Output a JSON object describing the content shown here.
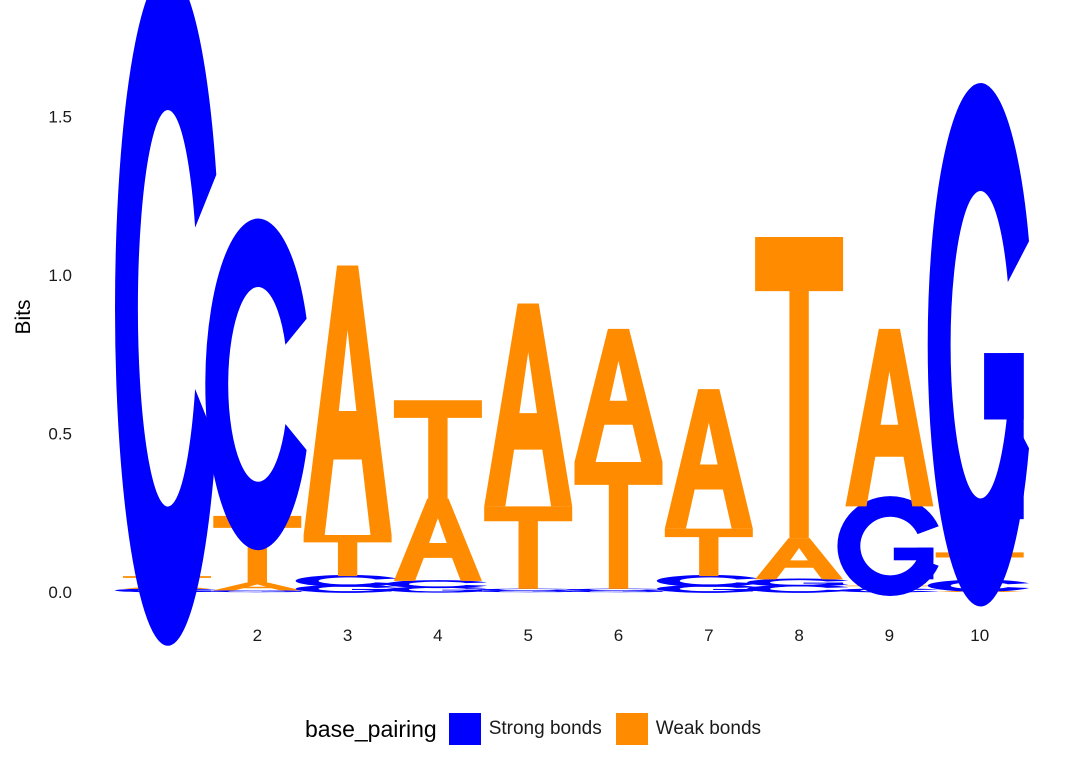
{
  "chart_data": {
    "type": "sequence-logo",
    "ylabel": "Bits",
    "ylim": [
      0,
      1.75
    ],
    "yticks": [
      0.0,
      0.5,
      1.0,
      1.5
    ],
    "ytick_labels": [
      "0.0",
      "0.5",
      "1.0",
      "1.5"
    ],
    "positions": [
      "1",
      "2",
      "3",
      "4",
      "5",
      "6",
      "7",
      "8",
      "9",
      "10"
    ],
    "legend": {
      "title": "base_pairing",
      "entries": [
        {
          "label": "Strong bonds",
          "color": "#0000ff"
        },
        {
          "label": "Weak bonds",
          "color": "#ff8c00"
        }
      ]
    },
    "color_scheme": {
      "C": "#0000ff",
      "G": "#0000ff",
      "A": "#ff8c00",
      "T": "#ff8c00"
    },
    "letters": [
      [
        {
          "letter": "G",
          "bits": 0.01
        },
        {
          "letter": "A",
          "bits": 0.01
        },
        {
          "letter": "T",
          "bits": 0.03
        },
        {
          "letter": "C",
          "bits": 1.69
        }
      ],
      [
        {
          "letter": "G",
          "bits": 0.005
        },
        {
          "letter": "A",
          "bits": 0.025
        },
        {
          "letter": "T",
          "bits": 0.21
        },
        {
          "letter": "C",
          "bits": 0.83
        }
      ],
      [
        {
          "letter": "G",
          "bits": 0.02
        },
        {
          "letter": "C",
          "bits": 0.03
        },
        {
          "letter": "T",
          "bits": 0.13
        },
        {
          "letter": "A",
          "bits": 0.85
        }
      ],
      [
        {
          "letter": "G",
          "bits": 0.015
        },
        {
          "letter": "C",
          "bits": 0.02
        },
        {
          "letter": "A",
          "bits": 0.26
        },
        {
          "letter": "T",
          "bits": 0.31
        }
      ],
      [
        {
          "letter": "G",
          "bits": 0.005
        },
        {
          "letter": "C",
          "bits": 0.005
        },
        {
          "letter": "T",
          "bits": 0.26
        },
        {
          "letter": "A",
          "bits": 0.64
        }
      ],
      [
        {
          "letter": "G",
          "bits": 0.005
        },
        {
          "letter": "C",
          "bits": 0.005
        },
        {
          "letter": "T",
          "bits": 0.4
        },
        {
          "letter": "A",
          "bits": 0.42
        }
      ],
      [
        {
          "letter": "G",
          "bits": 0.02
        },
        {
          "letter": "C",
          "bits": 0.03
        },
        {
          "letter": "T",
          "bits": 0.15
        },
        {
          "letter": "A",
          "bits": 0.44
        }
      ],
      [
        {
          "letter": "C",
          "bits": 0.02
        },
        {
          "letter": "G",
          "bits": 0.02
        },
        {
          "letter": "A",
          "bits": 0.13
        },
        {
          "letter": "T",
          "bits": 0.95
        }
      ],
      [
        {
          "letter": "C",
          "bits": 0.01
        },
        {
          "letter": "T",
          "bits": 0.01
        },
        {
          "letter": "G",
          "bits": 0.25
        },
        {
          "letter": "A",
          "bits": 0.56
        }
      ],
      [
        {
          "letter": "A",
          "bits": 0.005
        },
        {
          "letter": "C",
          "bits": 0.03
        },
        {
          "letter": "T",
          "bits": 0.09
        },
        {
          "letter": "G",
          "bits": 1.31
        }
      ]
    ]
  }
}
